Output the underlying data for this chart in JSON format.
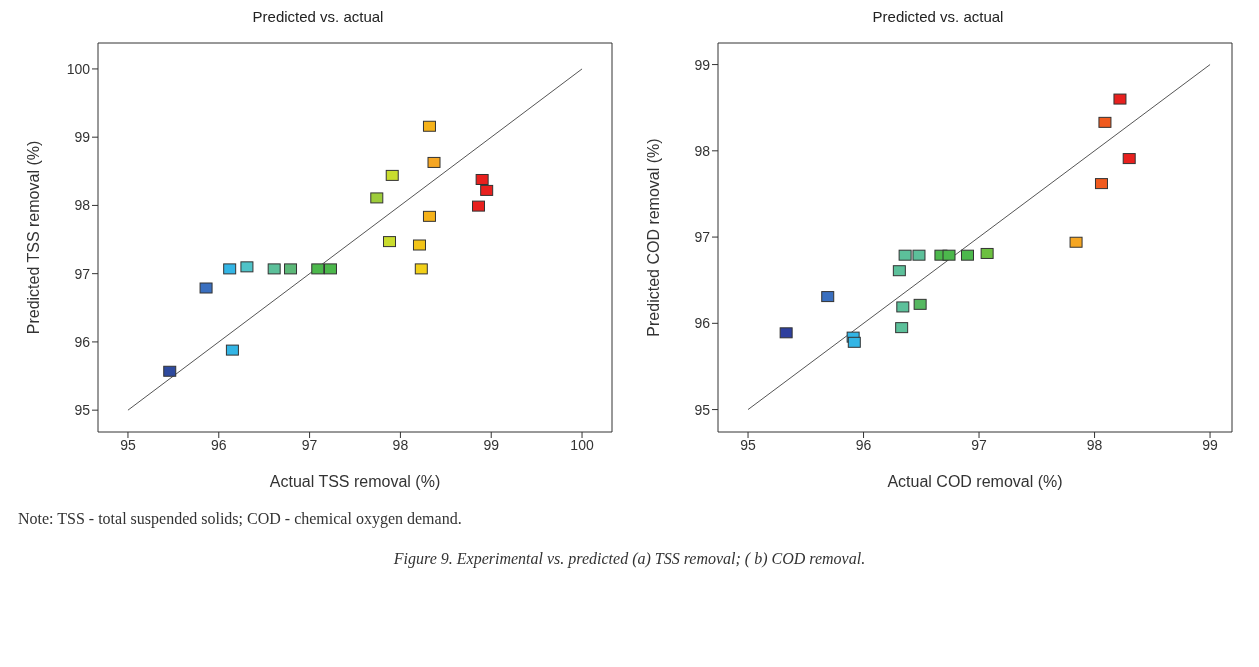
{
  "chart_data": [
    {
      "type": "scatter",
      "title": "Predicted vs. actual",
      "xlabel": "Actual TSS removal (%)",
      "ylabel": "Predicted TSS removal (%)",
      "xlim": [
        94.67,
        100.33
      ],
      "ylim": [
        94.68,
        100.38
      ],
      "xticks": [
        95,
        96,
        97,
        98,
        99,
        100
      ],
      "yticks": [
        95,
        96,
        97,
        98,
        99,
        100
      ],
      "annotations": [
        "Note: TSS - total suspended solids; COD - chemical oxygen demand.",
        "Figure 9. Experimental vs. predicted (a) TSS removal; ( b) COD removal."
      ],
      "series": [
        {
          "type": "line",
          "marker": "none",
          "color": "#555555",
          "x": [
            95,
            100
          ],
          "values": [
            95,
            100
          ]
        },
        {
          "marker": "square",
          "x": [
            95.46,
            95.86,
            96.12,
            96.15,
            96.31,
            96.61,
            96.79,
            97.09,
            97.23,
            97.74,
            97.88,
            97.91,
            98.21,
            98.23,
            98.32,
            98.32,
            98.37,
            98.86,
            98.9,
            98.95
          ],
          "values": [
            95.57,
            96.79,
            97.07,
            95.88,
            97.1,
            97.07,
            97.07,
            97.07,
            97.07,
            98.11,
            97.47,
            98.44,
            97.42,
            97.07,
            99.16,
            97.84,
            98.63,
            97.99,
            98.38,
            98.22
          ],
          "colors": [
            "#2e4a9e",
            "#3a6fbf",
            "#33b5e5",
            "#33b5e5",
            "#4fc3c8",
            "#5cc09a",
            "#5cb878",
            "#4cb84c",
            "#4cb84c",
            "#9dcc3a",
            "#c9dc2e",
            "#c9dc2e",
            "#f2c418",
            "#f2d018",
            "#f5b21a",
            "#f5b21a",
            "#f5a623",
            "#e8201e",
            "#e8201e",
            "#e8201e"
          ]
        }
      ]
    },
    {
      "type": "scatter",
      "title": "Predicted vs. actual",
      "xlabel": "Actual COD removal (%)",
      "ylabel": "Predicted COD removal (%)",
      "xlim": [
        94.74,
        99.19
      ],
      "ylim": [
        94.74,
        99.25
      ],
      "xticks": [
        95,
        96,
        97,
        98,
        99
      ],
      "yticks": [
        95,
        96,
        97,
        98,
        99
      ],
      "series": [
        {
          "type": "line",
          "marker": "none",
          "color": "#555555",
          "x": [
            95,
            99
          ],
          "values": [
            95,
            99
          ]
        },
        {
          "marker": "square",
          "x": [
            95.33,
            95.69,
            95.91,
            95.92,
            96.33,
            96.31,
            96.34,
            96.49,
            96.36,
            96.48,
            96.67,
            96.74,
            96.9,
            97.07,
            97.84,
            98.06,
            98.09,
            98.22,
            98.3
          ],
          "values": [
            95.89,
            96.31,
            95.84,
            95.78,
            95.95,
            96.61,
            96.19,
            96.22,
            96.79,
            96.79,
            96.79,
            96.79,
            96.79,
            96.81,
            96.94,
            97.62,
            98.33,
            98.6,
            97.91
          ],
          "colors": [
            "#2e3f9e",
            "#3a6fbf",
            "#33b5e5",
            "#33b5e5",
            "#5cc09a",
            "#5cc09a",
            "#5cc09a",
            "#55b860",
            "#5cc09a",
            "#5cc09a",
            "#4cb84c",
            "#4cb84c",
            "#4cb84c",
            "#6cc040",
            "#f5a623",
            "#f05a1e",
            "#f05a1e",
            "#e8201e",
            "#e8201e"
          ]
        }
      ]
    }
  ]
}
